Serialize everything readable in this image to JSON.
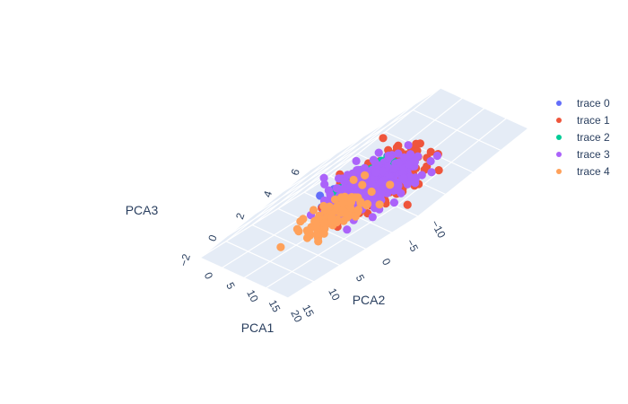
{
  "chart_data": {
    "type": "scatter",
    "dimensions": 3,
    "axes": {
      "x": {
        "label": "PCA1",
        "ticks": [
          "0",
          "5",
          "10",
          "15",
          "20"
        ]
      },
      "y": {
        "label": "PCA2",
        "ticks": [
          "15",
          "10",
          "5",
          "0",
          "−5",
          "−10"
        ]
      },
      "z": {
        "label": "PCA3",
        "ticks": [
          "6",
          "4",
          "2",
          "0",
          "−2"
        ]
      }
    },
    "legend_position": "top-right",
    "grid": true,
    "series": [
      {
        "name": "trace 0",
        "color": "#636efa",
        "count": 160,
        "center": [
          7.5,
          -1.5,
          1.0
        ],
        "spread": [
          1.6,
          1.8,
          0.8
        ]
      },
      {
        "name": "trace 1",
        "color": "#EF553B",
        "count": 260,
        "center": [
          9.0,
          -6.0,
          0.0
        ],
        "spread": [
          2.4,
          2.6,
          1.2
        ]
      },
      {
        "name": "trace 2",
        "color": "#00cc96",
        "count": 130,
        "center": [
          7.5,
          -0.5,
          1.5
        ],
        "spread": [
          1.2,
          1.4,
          0.7
        ]
      },
      {
        "name": "trace 3",
        "color": "#ab63fa",
        "count": 420,
        "center": [
          9.0,
          -2.5,
          0.8
        ],
        "spread": [
          2.2,
          2.4,
          1.0
        ]
      },
      {
        "name": "trace 4",
        "color": "#FFA15A",
        "count": 110,
        "center": [
          10.5,
          8.0,
          1.5
        ],
        "spread": [
          1.6,
          2.2,
          1.0
        ]
      }
    ]
  }
}
